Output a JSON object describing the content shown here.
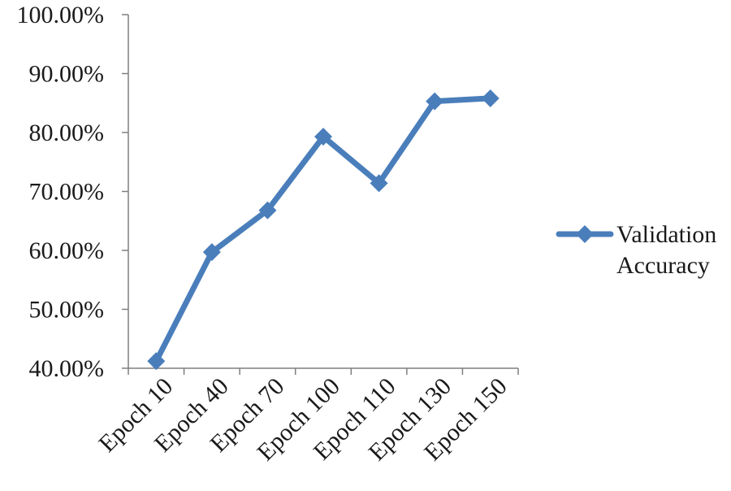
{
  "chart_data": {
    "type": "line",
    "categories": [
      "Epoch 10",
      "Epoch 40",
      "Epoch 70",
      "Epoch 100",
      "Epoch 110",
      "Epoch 130",
      "Epoch 150"
    ],
    "series": [
      {
        "name": "Validation Accuracy",
        "name_lines": [
          "Validation",
          "Accuracy"
        ],
        "values": [
          0.412,
          0.597,
          0.668,
          0.793,
          0.714,
          0.853,
          0.858
        ],
        "color": "#4a7ebb",
        "marker": "diamond"
      }
    ],
    "ylim": [
      0.4,
      1.0
    ],
    "yticks": [
      0.4,
      0.5,
      0.6,
      0.7,
      0.8,
      0.9,
      1.0
    ],
    "ytick_labels": [
      "40.00%",
      "50.00%",
      "60.00%",
      "70.00%",
      "80.00%",
      "90.00%",
      "100.00%"
    ],
    "grid": false,
    "legend_position": "right"
  }
}
